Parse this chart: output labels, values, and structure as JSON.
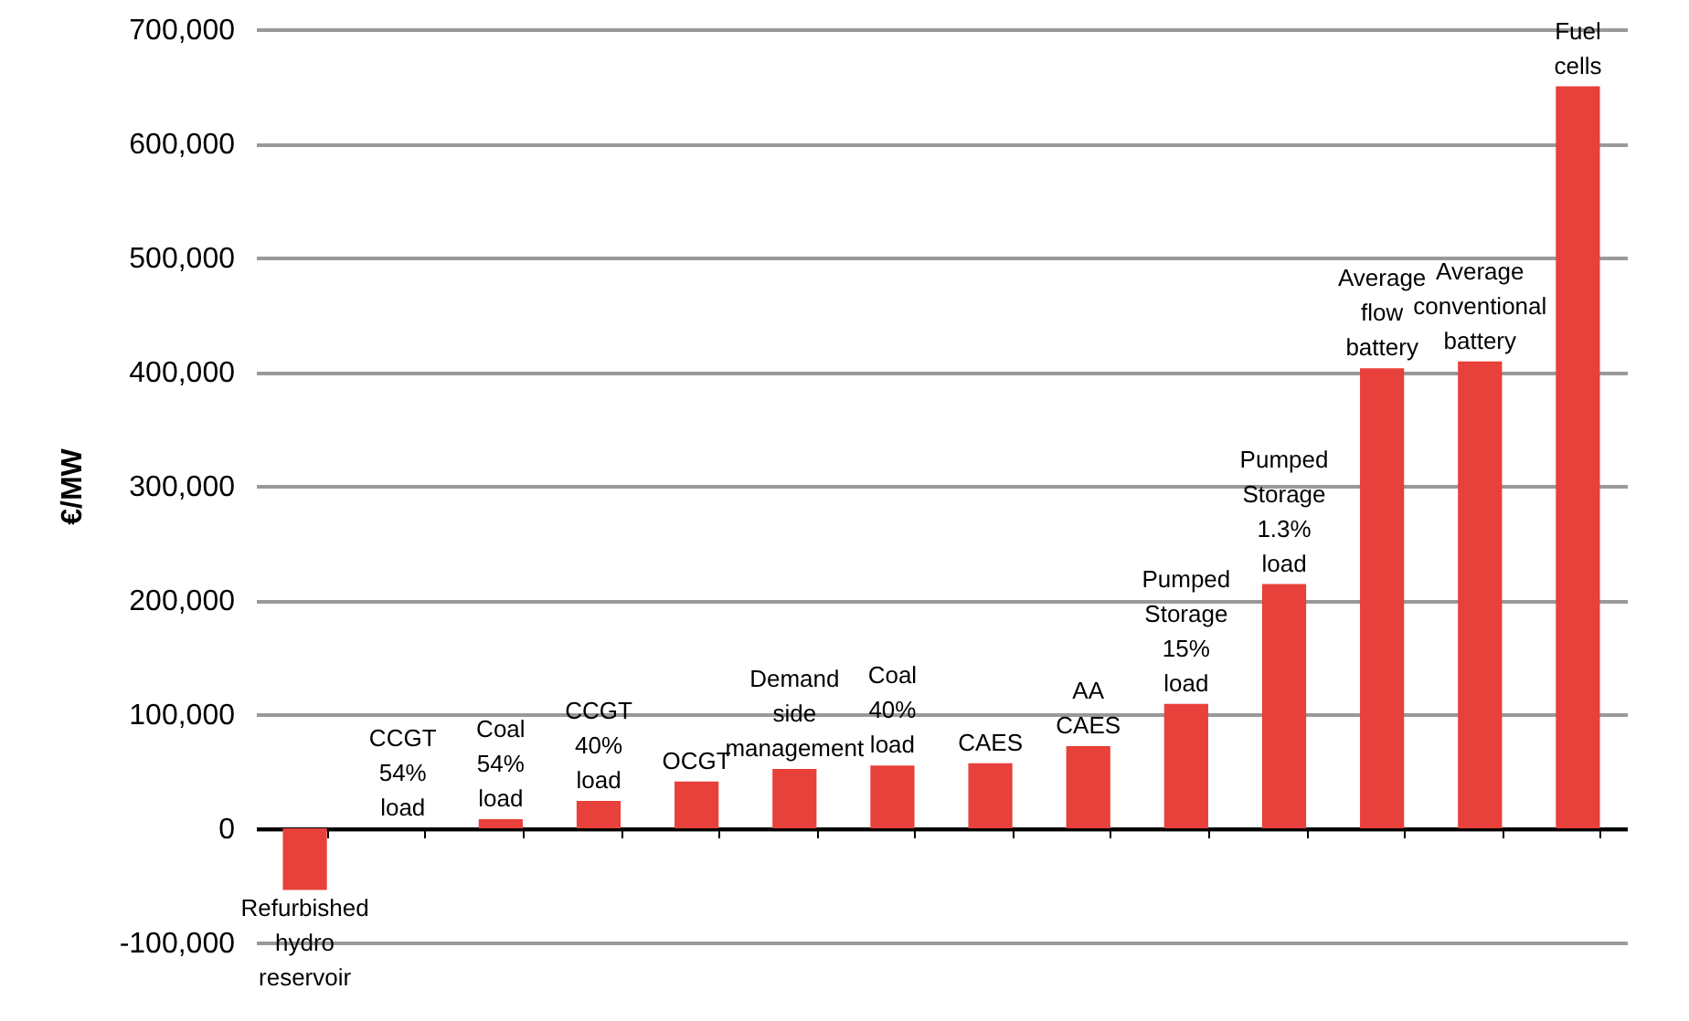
{
  "chart_data": {
    "type": "bar",
    "ylabel": "€/MW",
    "categories": [
      "Refurbished hydro reservoir",
      "CCGT 54% load",
      "Coal 54% load",
      "CCGT 40% load",
      "OCGT",
      "Demand side management",
      "Coal 40% load",
      "CAES",
      "AA CAES",
      "Pumped Storage 15% load",
      "Pumped Storage 1.3% load",
      "Average flow battery",
      "Average conventional battery",
      "Fuel cells"
    ],
    "values": [
      -54000,
      0,
      8000,
      24000,
      41000,
      52000,
      55000,
      57000,
      72000,
      109000,
      214000,
      403000,
      409000,
      650000
    ],
    "color": "#e8403a",
    "ylim": [
      -100000,
      700000
    ],
    "yticks": [
      {
        "value": -100000,
        "label": "-100,000"
      },
      0,
      {
        "value": 100000,
        "label": "100,000"
      },
      {
        "value": 200000,
        "label": "200,000"
      },
      {
        "value": 300000,
        "label": "300,000"
      },
      {
        "value": 400000,
        "label": "400,000"
      },
      {
        "value": 500000,
        "label": "500,000"
      },
      {
        "value": 600000,
        "label": "600,000"
      },
      {
        "value": 700000,
        "label": "700,000"
      }
    ],
    "grid": "y"
  }
}
